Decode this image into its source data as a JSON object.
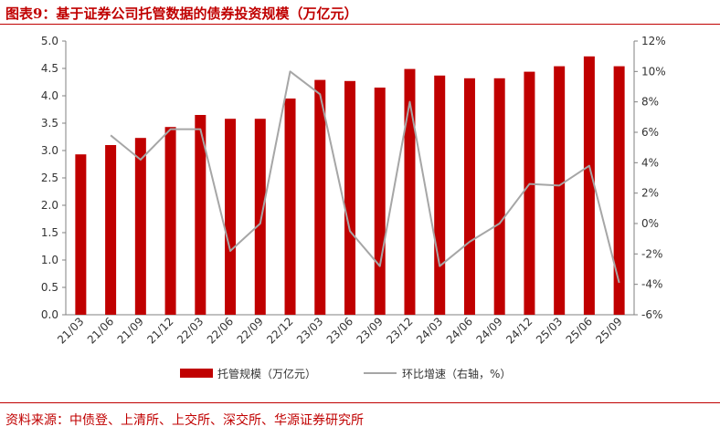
{
  "title": "图表9：基于证券公司托管数据的债券投资规模（万亿元）",
  "source": "资料来源：中债登、上清所、上交所、深交所、华源证券研究所",
  "colors": {
    "bar": "#c00000",
    "line": "#a6a6a6",
    "accent": "#c00000"
  },
  "chart_data": {
    "type": "bar",
    "categories": [
      "21/03",
      "21/06",
      "21/09",
      "21/12",
      "22/03",
      "22/06",
      "22/09",
      "22/12",
      "23/03",
      "23/06",
      "23/09",
      "23/12",
      "24/03",
      "24/06",
      "24/09",
      "24/12",
      "25/03",
      "25/06",
      "25/09"
    ],
    "series": [
      {
        "name": "托管规模（万亿元）",
        "type": "bar",
        "axis": "left",
        "values": [
          2.93,
          3.1,
          3.23,
          3.43,
          3.65,
          3.58,
          3.58,
          3.95,
          4.29,
          4.27,
          4.15,
          4.49,
          4.37,
          4.32,
          4.32,
          4.44,
          4.54,
          4.72,
          4.54
        ]
      },
      {
        "name": "环比增速（右轴，%）",
        "type": "line",
        "axis": "right",
        "values": [
          null,
          5.8,
          4.2,
          6.2,
          6.2,
          -1.8,
          0.0,
          10.0,
          8.5,
          -0.5,
          -2.8,
          8.0,
          -2.8,
          -1.2,
          0.0,
          2.6,
          2.5,
          3.8,
          -3.9
        ]
      }
    ],
    "left_axis": {
      "min": 0,
      "max": 5,
      "step": 0.5,
      "ticks": [
        "0.0",
        "0.5",
        "1.0",
        "1.5",
        "2.0",
        "2.5",
        "3.0",
        "3.5",
        "4.0",
        "4.5",
        "5.0"
      ]
    },
    "right_axis": {
      "min": -6,
      "max": 12,
      "step": 2,
      "ticks": [
        "-6%",
        "-4%",
        "-2%",
        "0%",
        "2%",
        "4%",
        "6%",
        "8%",
        "10%",
        "12%"
      ]
    },
    "legend_position": "bottom",
    "grid": false
  }
}
